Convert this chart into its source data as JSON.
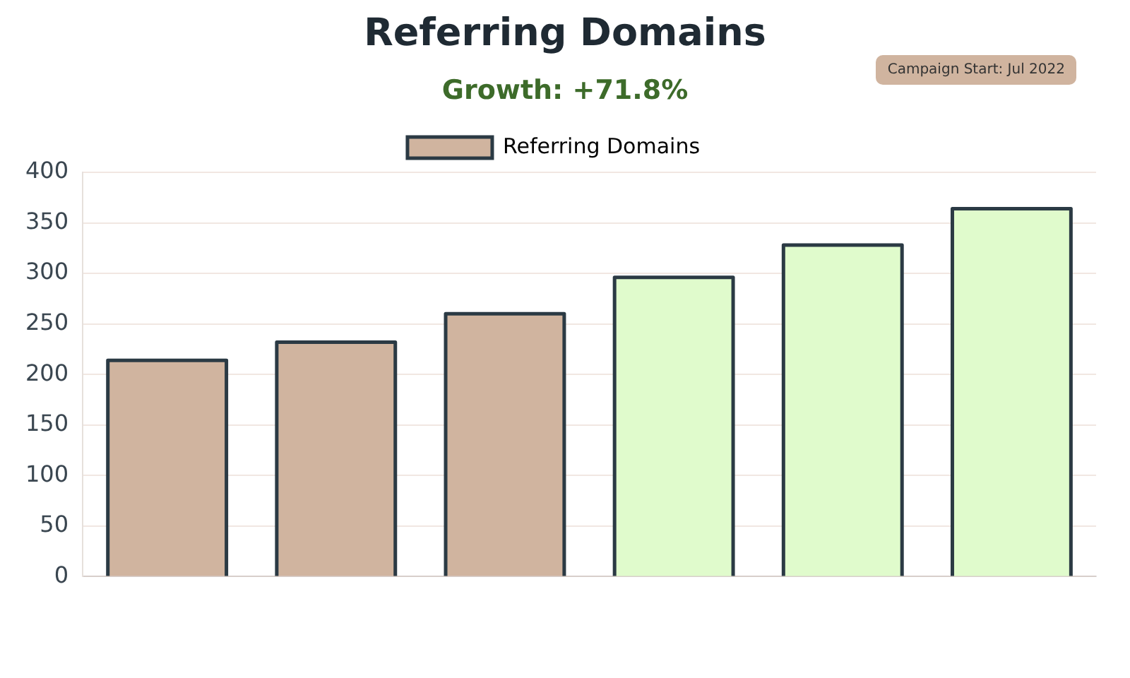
{
  "chart_data": {
    "type": "bar",
    "title": "Referring Domains",
    "annotations": [
      "Growth: +71.8%",
      "Campaign Start: Jul 2022"
    ],
    "categories": [
      null,
      null,
      null,
      null,
      null,
      null
    ],
    "series": [
      {
        "name": "Referring Domains",
        "color": "#d0b49f",
        "colors": [
          "#d0b49f",
          "#d0b49f",
          "#d0b49f",
          "#e0fbcc",
          "#e0fbcc",
          "#e0fbcc"
        ],
        "values": [
          214,
          232,
          260,
          296,
          328,
          364
        ]
      }
    ],
    "ylim": [
      0,
      400
    ],
    "yticks": [
      0,
      50,
      100,
      150,
      200,
      250,
      300,
      350,
      400
    ],
    "grid": "y",
    "legend": "top"
  }
}
